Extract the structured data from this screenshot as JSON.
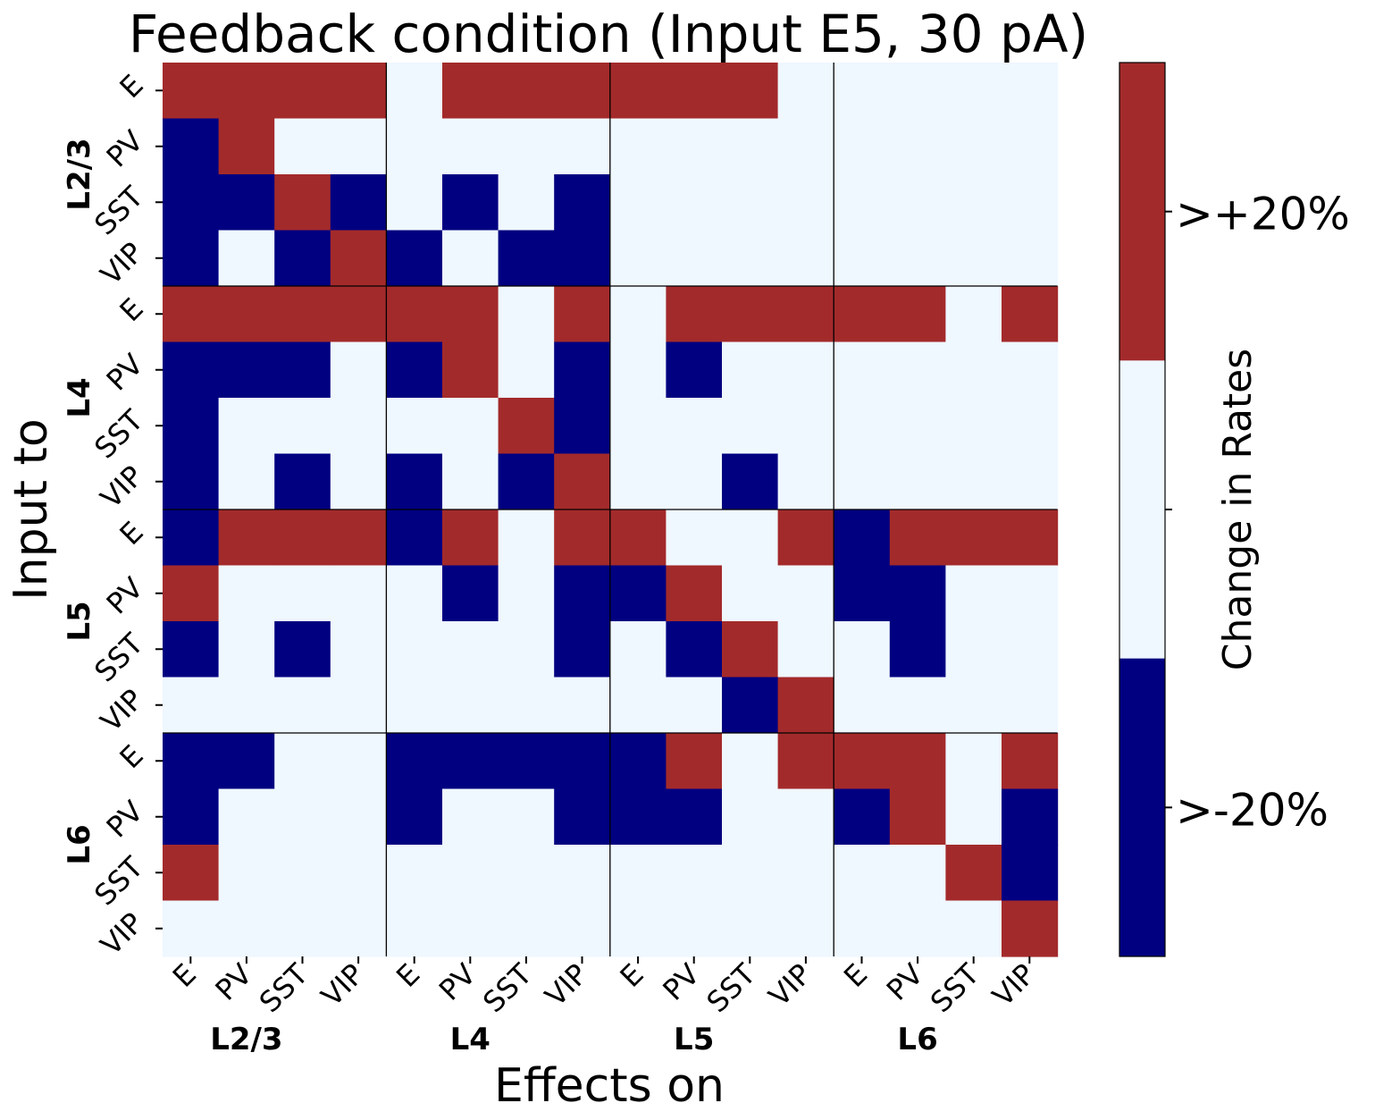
{
  "chart_data": {
    "type": "heatmap",
    "title": "Feedback condition (Input E5, 30 pA)",
    "xlabel": "Effects on",
    "ylabel": "Input to",
    "cell_labels": [
      "E",
      "PV",
      "SST",
      "VIP",
      "E",
      "PV",
      "SST",
      "VIP",
      "E",
      "PV",
      "SST",
      "VIP",
      "E",
      "PV",
      "SST",
      "VIP"
    ],
    "layers": [
      "L2/3",
      "L4",
      "L5",
      "L6"
    ],
    "values": [
      [
        1,
        1,
        1,
        1,
        0,
        1,
        1,
        1,
        1,
        1,
        1,
        0,
        0,
        0,
        0,
        0
      ],
      [
        -1,
        1,
        0,
        0,
        0,
        0,
        0,
        0,
        0,
        0,
        0,
        0,
        0,
        0,
        0,
        0
      ],
      [
        -1,
        -1,
        1,
        -1,
        0,
        -1,
        0,
        -1,
        0,
        0,
        0,
        0,
        0,
        0,
        0,
        0
      ],
      [
        -1,
        0,
        -1,
        1,
        -1,
        0,
        -1,
        -1,
        0,
        0,
        0,
        0,
        0,
        0,
        0,
        0
      ],
      [
        1,
        1,
        1,
        1,
        1,
        1,
        0,
        1,
        0,
        1,
        1,
        1,
        1,
        1,
        0,
        1
      ],
      [
        -1,
        -1,
        -1,
        0,
        -1,
        1,
        0,
        -1,
        0,
        -1,
        0,
        0,
        0,
        0,
        0,
        0
      ],
      [
        -1,
        0,
        0,
        0,
        0,
        0,
        1,
        -1,
        0,
        0,
        0,
        0,
        0,
        0,
        0,
        0
      ],
      [
        -1,
        0,
        -1,
        0,
        -1,
        0,
        -1,
        1,
        0,
        0,
        -1,
        0,
        0,
        0,
        0,
        0
      ],
      [
        -1,
        1,
        1,
        1,
        -1,
        1,
        0,
        1,
        1,
        0,
        0,
        1,
        -1,
        1,
        1,
        1
      ],
      [
        1,
        0,
        0,
        0,
        0,
        -1,
        0,
        -1,
        -1,
        1,
        0,
        0,
        -1,
        -1,
        0,
        0
      ],
      [
        -1,
        0,
        -1,
        0,
        0,
        0,
        0,
        -1,
        0,
        -1,
        1,
        0,
        0,
        -1,
        0,
        0
      ],
      [
        0,
        0,
        0,
        0,
        0,
        0,
        0,
        0,
        0,
        0,
        -1,
        1,
        0,
        0,
        0,
        0
      ],
      [
        -1,
        -1,
        0,
        0,
        -1,
        -1,
        -1,
        -1,
        -1,
        1,
        0,
        1,
        1,
        1,
        0,
        1
      ],
      [
        -1,
        0,
        0,
        0,
        -1,
        0,
        0,
        -1,
        -1,
        -1,
        0,
        0,
        -1,
        1,
        0,
        -1
      ],
      [
        1,
        0,
        0,
        0,
        0,
        0,
        0,
        0,
        0,
        0,
        0,
        0,
        0,
        0,
        1,
        -1
      ],
      [
        0,
        0,
        0,
        0,
        0,
        0,
        0,
        0,
        0,
        0,
        0,
        0,
        0,
        0,
        0,
        1
      ]
    ],
    "value_meaning": {
      "1": ">+20%",
      "0": "within ±20%",
      "-1": ">-20%"
    },
    "colors": {
      "-1": "#000080",
      "0": "#eff7ff",
      "1": "#a32a2b"
    },
    "colorbar": {
      "label": "Change in Rates",
      "ticks": [
        ">+20%",
        ">-20%"
      ]
    }
  }
}
